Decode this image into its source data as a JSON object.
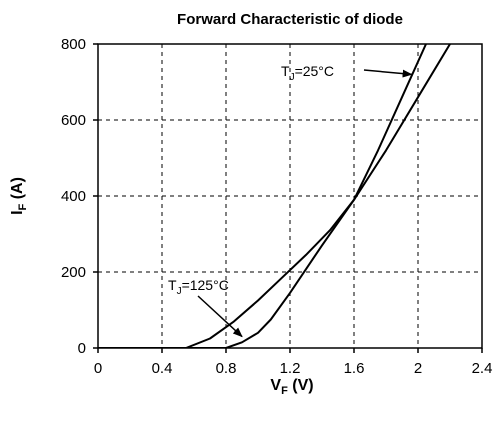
{
  "chart_data": {
    "type": "line",
    "title": "Forward Characteristic of diode",
    "xlabel": {
      "main": "V",
      "sub": "F",
      "unit": " (V)"
    },
    "ylabel": {
      "main": "I",
      "sub": "F",
      "unit": " (A)"
    },
    "xlim": [
      0,
      2.4
    ],
    "ylim": [
      0,
      800
    ],
    "x_ticks": [
      0,
      0.4,
      0.8,
      1.2,
      1.6,
      2,
      2.4
    ],
    "x_tick_labels": [
      "0",
      "0.4",
      "0.8",
      "1.2",
      "1.6",
      "2",
      "2.4"
    ],
    "y_ticks": [
      0,
      200,
      400,
      600,
      800
    ],
    "y_tick_labels": [
      "0",
      "200",
      "400",
      "600",
      "800"
    ],
    "grid": true,
    "series": [
      {
        "x": [
          0.0,
          0.55,
          0.7,
          0.85,
          1.0,
          1.15,
          1.3,
          1.45,
          1.6,
          1.75,
          1.9,
          2.05
        ],
        "y": [
          0,
          0,
          25,
          70,
          125,
          185,
          245,
          310,
          390,
          520,
          660,
          800
        ]
      },
      {
        "x": [
          0.55,
          0.8,
          0.9,
          1.0,
          1.08,
          1.2,
          1.4,
          1.6,
          1.8,
          2.0,
          2.2
        ],
        "y": [
          0,
          0,
          15,
          40,
          75,
          145,
          270,
          390,
          520,
          660,
          800
        ]
      }
    ],
    "annotations": [
      {
        "main": "T",
        "sub": "J",
        "rest": "=25°C",
        "points_to": {
          "x": 1.96,
          "y": 720
        }
      },
      {
        "main": "T",
        "sub": "J",
        "rest": "=125°C",
        "points_to": {
          "x": 0.9,
          "y": 30
        }
      }
    ]
  }
}
